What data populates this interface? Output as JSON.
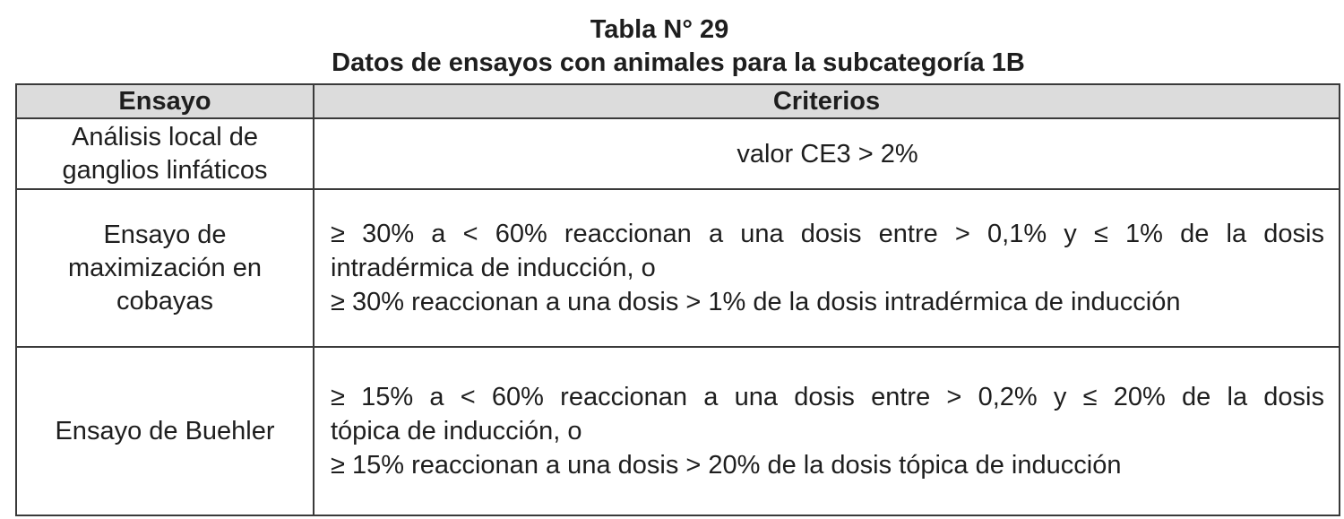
{
  "title": "Tabla N° 29",
  "subtitle": "Datos de ensayos con animales para la subcategoría 1B",
  "table": {
    "headers": [
      "Ensayo",
      "Criterios"
    ],
    "rows": [
      {
        "ensayo": [
          "Análisis local de",
          "ganglios linfáticos"
        ],
        "criterios": [
          "valor CE3 > 2%"
        ]
      },
      {
        "ensayo": [
          "Ensayo de",
          "maximización en",
          "cobayas"
        ],
        "criterios": [
          "≥ 30% a < 60% reaccionan a una dosis entre > 0,1% y ≤ 1% de la dosis",
          "intradérmica de inducción, o",
          "≥ 30% reaccionan a una dosis > 1% de la dosis intradérmica de inducción"
        ]
      },
      {
        "ensayo": [
          "Ensayo de Buehler"
        ],
        "criterios": [
          "≥ 15% a < 60% reaccionan a una dosis entre > 0,2% y ≤ 20% de la dosis",
          "tópica de inducción, o",
          "≥ 15% reaccionan a una dosis > 20% de la dosis tópica de inducción"
        ]
      }
    ]
  }
}
